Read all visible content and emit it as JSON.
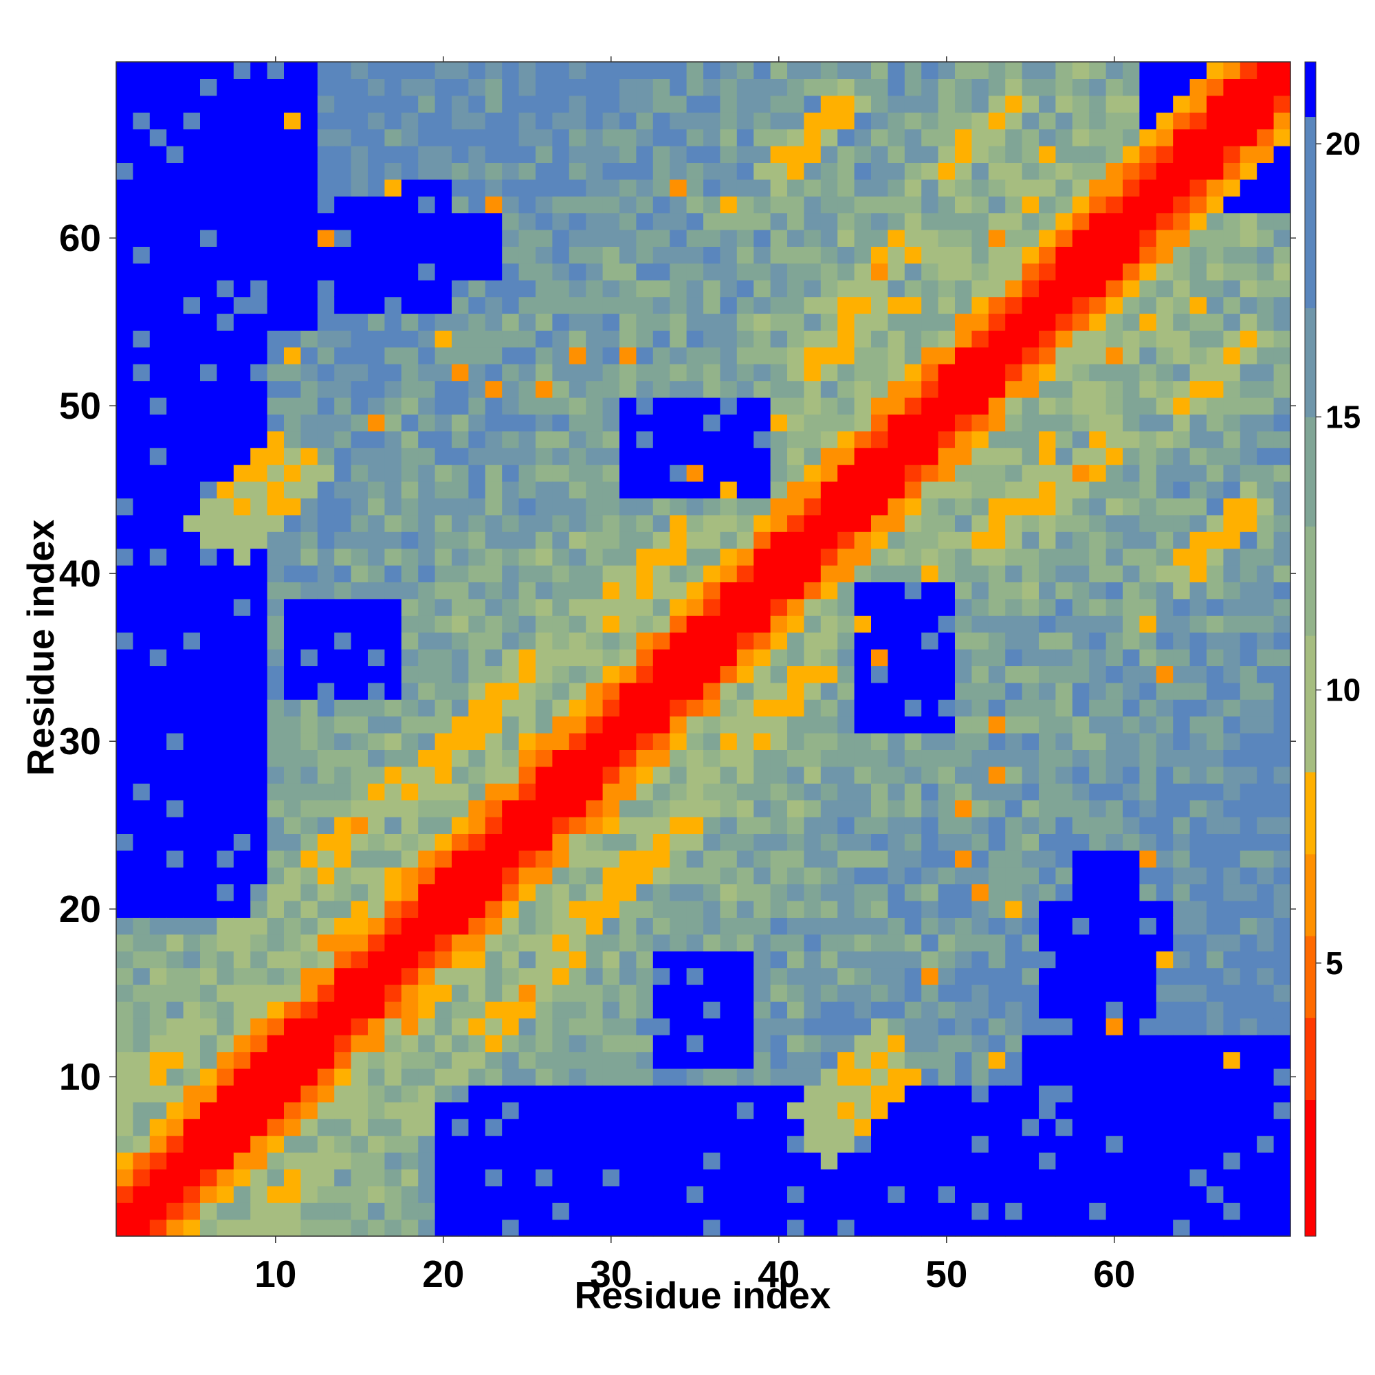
{
  "chart_data": {
    "type": "heatmap",
    "title": "",
    "xlabel": "Residue index",
    "ylabel": "Residue index",
    "n_residues": 70,
    "x_range": [
      1,
      70
    ],
    "y_range": [
      1,
      70
    ],
    "x_ticks": [
      10,
      20,
      30,
      40,
      50,
      60
    ],
    "y_ticks": [
      10,
      20,
      30,
      40,
      50,
      60
    ],
    "colorbar": {
      "ticks": [
        5,
        10,
        15,
        20
      ],
      "range": [
        0,
        21.5
      ],
      "placement": "right"
    },
    "color_scale": [
      {
        "max": 2.5,
        "color": "#ff0000"
      },
      {
        "max": 4.0,
        "color": "#ff3a00"
      },
      {
        "max": 5.5,
        "color": "#ff6a00"
      },
      {
        "max": 7.0,
        "color": "#ff9000"
      },
      {
        "max": 8.5,
        "color": "#ffb000"
      },
      {
        "max": 11.0,
        "color": "#a6bd80"
      },
      {
        "max": 13.0,
        "color": "#93b38a"
      },
      {
        "max": 15.0,
        "color": "#80a596"
      },
      {
        "max": 17.0,
        "color": "#6f96aa"
      },
      {
        "max": 20.5,
        "color": "#5a86bd"
      },
      {
        "max": 999,
        "color": "#0000ff"
      }
    ],
    "grid": false,
    "legend": "colorbar-right",
    "symmetric": true,
    "contacts": [
      {
        "i": 15,
        "j": 25,
        "w": 1.2,
        "d": 6.5
      },
      {
        "i": 21,
        "j": 30,
        "w": 1.2,
        "d": 6.5
      },
      {
        "i": 32,
        "j": 40,
        "w": 1.0,
        "d": 6.8
      },
      {
        "i": 8,
        "j": 45,
        "w": 1.3,
        "d": 7.0
      },
      {
        "i": 44,
        "j": 54,
        "w": 1.3,
        "d": 7.0
      },
      {
        "i": 46,
        "j": 58,
        "w": 1.5,
        "d": 6.6
      },
      {
        "i": 52,
        "j": 66,
        "w": 1.2,
        "d": 7.0
      },
      {
        "i": 42,
        "j": 66,
        "w": 1.5,
        "d": 6.8
      },
      {
        "i": 10,
        "j": 44,
        "w": 1.0,
        "d": 6.8
      },
      {
        "i": 24,
        "j": 33,
        "w": 1.2,
        "d": 7.5
      },
      {
        "i": 3,
        "j": 11,
        "w": 1.0,
        "d": 8.0
      },
      {
        "i": 17,
        "j": 21,
        "w": 1.0,
        "d": 7.0
      }
    ],
    "hot_spots": [
      [
        11,
        53
      ],
      [
        13,
        60
      ],
      [
        16,
        49
      ],
      [
        20,
        54
      ],
      [
        21,
        52
      ],
      [
        23,
        62
      ],
      [
        28,
        53
      ],
      [
        31,
        53
      ],
      [
        35,
        46
      ],
      [
        37,
        45
      ],
      [
        40,
        49
      ],
      [
        42,
        44
      ],
      [
        48,
        56
      ],
      [
        53,
        60
      ],
      [
        55,
        62
      ],
      [
        56,
        65
      ],
      [
        23,
        51
      ],
      [
        26,
        51
      ],
      [
        34,
        63
      ],
      [
        37,
        62
      ],
      [
        11,
        67
      ],
      [
        17,
        63
      ],
      [
        25,
        30
      ],
      [
        18,
        13
      ]
    ],
    "far_regions": [
      {
        "i0": 1,
        "i1": 9,
        "j0": 22,
        "j1": 70
      },
      {
        "i0": 5,
        "i1": 12,
        "j0": 55,
        "j1": 70
      },
      {
        "i0": 20,
        "i1": 38,
        "j0": 1,
        "j1": 8
      },
      {
        "i0": 31,
        "i1": 38,
        "j0": 1,
        "j1": 9
      },
      {
        "i0": 56,
        "i1": 62,
        "j0": 14,
        "j1": 19
      },
      {
        "i0": 58,
        "i1": 61,
        "j0": 11,
        "j1": 23
      },
      {
        "i0": 45,
        "i1": 50,
        "j0": 31,
        "j1": 39
      },
      {
        "i0": 31,
        "i1": 39,
        "j0": 45,
        "j1": 50
      },
      {
        "i0": 13,
        "i1": 21,
        "j0": 58,
        "j1": 61
      },
      {
        "i0": 17,
        "i1": 20,
        "j0": 56,
        "j1": 63
      },
      {
        "i0": 33,
        "i1": 38,
        "j0": 11,
        "j1": 17
      },
      {
        "i0": 11,
        "i1": 17,
        "j0": 33,
        "j1": 38
      },
      {
        "i0": 62,
        "i1": 70,
        "j0": 1,
        "j1": 4
      },
      {
        "i0": 66,
        "i1": 70,
        "j0": 1,
        "j1": 7
      },
      {
        "i0": 66,
        "i1": 70,
        "j0": 62,
        "j1": 70
      },
      {
        "i0": 1,
        "i1": 4,
        "j0": 62,
        "j1": 70
      },
      {
        "i0": 1,
        "i1": 6,
        "j0": 66,
        "j1": 70
      }
    ]
  }
}
